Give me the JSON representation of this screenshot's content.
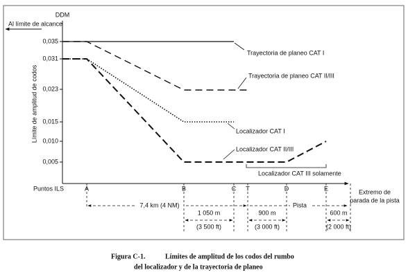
{
  "header": {
    "unit": "DDM",
    "range_note": "Al límite de alcance",
    "y_axis_label": "Límite de amplitud de codos"
  },
  "y_labels": [
    "0,035",
    "0,031",
    "0,023",
    "0,015",
    "0,010",
    "0,005"
  ],
  "x_labels": [
    "Puntos ILS",
    "A",
    "B",
    "C",
    "T",
    "D",
    "E"
  ],
  "runway_end": [
    "Extremo de",
    "parada de la pista"
  ],
  "curves": [
    "Trayectoria de planeo CAT I",
    "Trayectoria de planeo CAT II/III",
    "Localizador CAT I",
    "Localizador CAT II/III",
    "Localizador CAT III solamente"
  ],
  "distances": {
    "total": "7,4 km (4 NM)",
    "runway": "Pista",
    "bc_m": "1 050 m",
    "bc_ft": "(3 500 ft)",
    "td_m": "900 m",
    "td_ft": "(3 000 ft)",
    "e_m": "600 m",
    "e_ft": "(2 000 ft)"
  },
  "caption": {
    "number": "Figura C-1.",
    "line1": "Límites de amplitud de los codos del rumbo",
    "line2": "del localizador y de la trayectoria de planeo"
  }
}
